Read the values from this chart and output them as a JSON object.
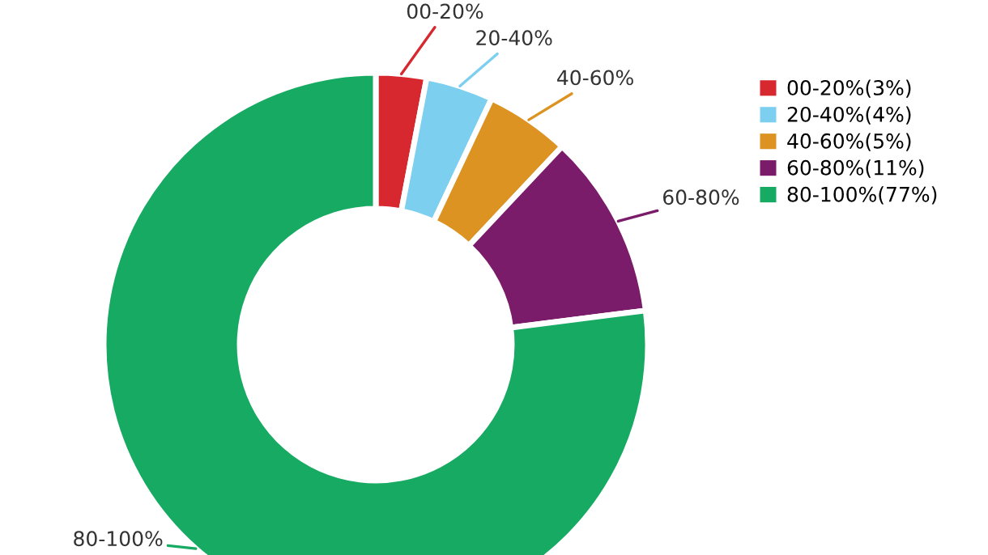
{
  "chart_data": {
    "type": "donut",
    "categories": [
      "00-20%(3%)",
      "20-40%(4%)",
      "40-60%(5%)",
      "60-80%(11%)",
      "80-100%(77%)"
    ],
    "values": [
      3,
      4,
      5,
      11,
      77
    ],
    "annotations": [
      "00-20%",
      "20-40%",
      "40-60%",
      "60-80%",
      "80-100%"
    ],
    "colors": [
      "#d7282f",
      "#7ccfee",
      "#dc9322",
      "#7b1c6a",
      "#17aa63"
    ],
    "legend": "right"
  }
}
